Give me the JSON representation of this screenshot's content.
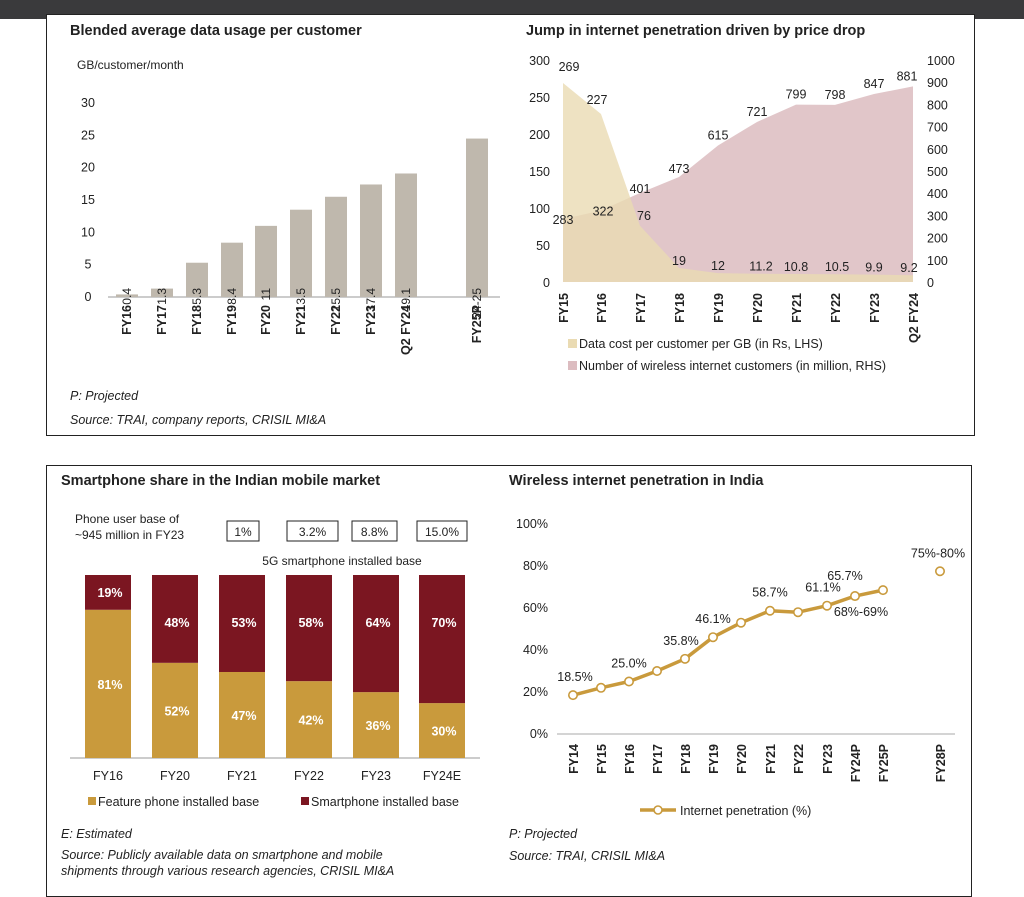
{
  "chart_data": [
    {
      "type": "bar",
      "title": "Blended average data usage per customer",
      "ylabel": "GB/customer/month",
      "categories": [
        "FY16",
        "FY17",
        "FY18",
        "FY19",
        "FY20",
        "FY21",
        "FY22",
        "FY23",
        "Q2 FY24",
        "FY25P"
      ],
      "values": [
        0.4,
        1.3,
        5.3,
        8.4,
        11,
        13.5,
        15.5,
        17.4,
        19.1,
        24.5
      ],
      "data_labels": [
        "0.4",
        "1.3",
        "5.3",
        "8.4",
        "11",
        "13.5",
        "15.5",
        "17.4",
        "19.1",
        "24-25"
      ],
      "yticks": [
        "0",
        "5",
        "10",
        "15",
        "20",
        "25",
        "30"
      ],
      "ylim": [
        0,
        30
      ],
      "color": "#bfb8ad",
      "notes": [
        "P: Projected",
        "Source: TRAI, company reports, CRISIL MI&A"
      ]
    },
    {
      "type": "area",
      "title": "Jump in internet penetration driven by price drop",
      "categories": [
        "FY15",
        "FY16",
        "FY17",
        "FY18",
        "FY19",
        "FY20",
        "FY21",
        "FY22",
        "FY23",
        "Q2 FY24"
      ],
      "series": [
        {
          "name": "Data cost per customer per GB (in Rs, LHS)",
          "axis": "left",
          "color": "#eadbb3",
          "values": [
            269,
            227,
            76,
            19,
            12,
            11.2,
            10.8,
            10.5,
            9.9,
            9.2
          ],
          "labels": [
            "269",
            "227",
            "76",
            "19",
            "12",
            "11.2",
            "10.8",
            "10.5",
            "9.9",
            "9.2"
          ]
        },
        {
          "name": "Number of wireless internet customers (in million, RHS)",
          "axis": "right",
          "color": "#dcbcc0",
          "values": [
            283,
            322,
            401,
            473,
            615,
            721,
            799,
            798,
            847,
            881
          ],
          "labels": [
            "283",
            "322",
            "401",
            "473",
            "615",
            "721",
            "799",
            "798",
            "847",
            "881"
          ]
        }
      ],
      "yticks_left": [
        "0",
        "50",
        "100",
        "150",
        "200",
        "250",
        "300"
      ],
      "yticks_right": [
        "0",
        "100",
        "200",
        "300",
        "400",
        "500",
        "600",
        "700",
        "800",
        "900",
        "1000"
      ],
      "ylim_left": [
        0,
        300
      ],
      "ylim_right": [
        0,
        1000
      ]
    },
    {
      "type": "bar",
      "stacked": true,
      "title": "Smartphone share in the Indian mobile market",
      "categories": [
        "FY16",
        "FY20",
        "FY21",
        "FY22",
        "FY23",
        "FY24E"
      ],
      "series": [
        {
          "name": "Feature phone installed base",
          "color": "#c99a3c",
          "values": [
            81,
            52,
            47,
            42,
            36,
            30
          ],
          "labels": [
            "81%",
            "52%",
            "47%",
            "42%",
            "36%",
            "30%"
          ]
        },
        {
          "name": "Smartphone installed base",
          "color": "#7b1621",
          "values": [
            19,
            48,
            53,
            58,
            64,
            70
          ],
          "labels": [
            "19%",
            "48%",
            "53%",
            "58%",
            "64%",
            "70%"
          ]
        }
      ],
      "phone_base_note": [
        "Phone user base of",
        "~945 million in FY23"
      ],
      "fiveg_boxes": [
        "1%",
        "3.2%",
        "8.8%",
        "15.0%"
      ],
      "fiveg_label": "5G smartphone installed base",
      "notes": [
        "E: Estimated",
        "Source: Publicly available data on smartphone and mobile",
        "shipments through various research agencies, CRISIL MI&A"
      ]
    },
    {
      "type": "line",
      "title": "Wireless internet penetration in India",
      "categories": [
        "FY14",
        "FY15",
        "FY16",
        "FY17",
        "FY18",
        "FY19",
        "FY20",
        "FY21",
        "FY22",
        "FY23",
        "FY24P",
        "FY25P",
        "",
        "FY28P"
      ],
      "series": [
        {
          "name": "Internet penetration (%)",
          "color": "#c99a3c",
          "values": [
            18.5,
            22,
            25,
            30,
            35.8,
            46.1,
            53,
            58.7,
            58,
            61.1,
            65.7,
            68.5,
            null,
            77.5
          ]
        }
      ],
      "data_labels": [
        {
          "index": 0,
          "text": "18.5%"
        },
        {
          "index": 2,
          "text": "25.0%"
        },
        {
          "index": 4,
          "text": "35.8%"
        },
        {
          "index": 5,
          "text": "46.1%"
        },
        {
          "index": 7,
          "text": "58.7%"
        },
        {
          "index": 9,
          "text": "61.1%"
        },
        {
          "index": 10,
          "text": "65.7%"
        },
        {
          "index": 11,
          "text": "68%-69%"
        },
        {
          "index": 13,
          "text": "75%-80%"
        }
      ],
      "yticks": [
        "0%",
        "20%",
        "40%",
        "60%",
        "80%",
        "100%"
      ],
      "ylim": [
        0,
        100
      ],
      "notes": [
        "P: Projected",
        "Source: TRAI, CRISIL MI&A"
      ]
    }
  ]
}
